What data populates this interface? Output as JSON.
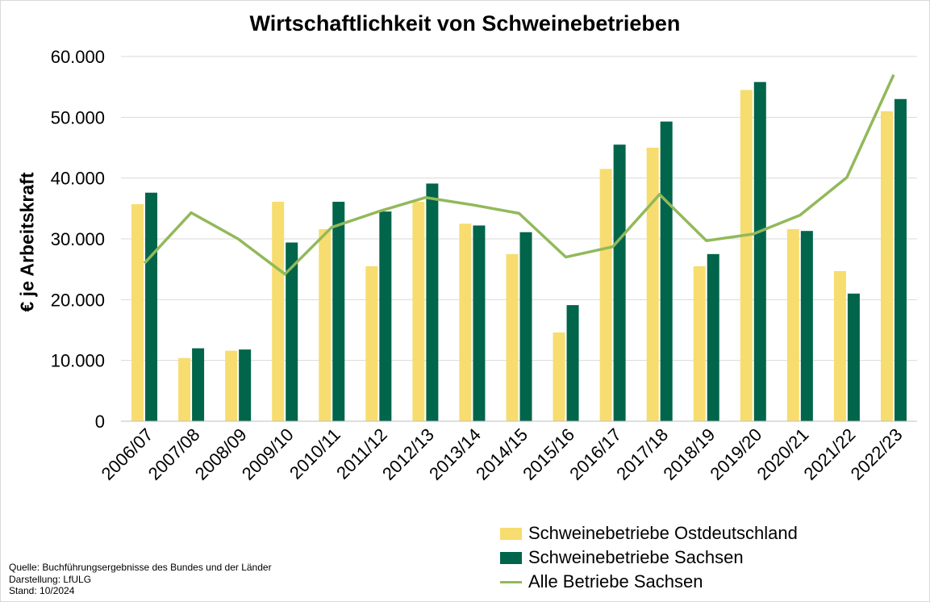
{
  "chart_data": {
    "type": "bar",
    "title": "Wirtschaftlichkeit von Schweinebetrieben",
    "xlabel": "",
    "ylabel": "€ je Arbeitskraft",
    "ylim": [
      0,
      60000
    ],
    "yticks": [
      0,
      10000,
      20000,
      30000,
      40000,
      50000,
      60000
    ],
    "ytick_labels": [
      "0",
      "10.000",
      "20.000",
      "30.000",
      "40.000",
      "50.000",
      "60.000"
    ],
    "grid": true,
    "legend_position": "bottom-right",
    "categories": [
      "2006/07",
      "2007/08",
      "2008/09",
      "2009/10",
      "2010/11",
      "2011/12",
      "2012/13",
      "2013/14",
      "2014/15",
      "2015/16",
      "2016/17",
      "2017/18",
      "2018/19",
      "2019/20",
      "2020/21",
      "2021/22",
      "2022/23"
    ],
    "series": [
      {
        "name": "Schweinebetriebe Ostdeutschland",
        "type": "bar",
        "color": "#f7dc6f",
        "values": [
          35700,
          10400,
          11600,
          36100,
          31600,
          25500,
          36100,
          32500,
          27500,
          14600,
          41500,
          45000,
          25500,
          54500,
          31600,
          24700,
          51000
        ]
      },
      {
        "name": "Schweinebetriebe Sachsen",
        "type": "bar",
        "color": "#00654a",
        "values": [
          37600,
          12000,
          11800,
          29400,
          36100,
          34500,
          39100,
          32200,
          31100,
          19100,
          45500,
          49300,
          27500,
          55800,
          31300,
          21000,
          53000
        ]
      },
      {
        "name": "Alle Betriebe Sachsen",
        "type": "line",
        "color": "#92b95a",
        "values": [
          26000,
          34300,
          30000,
          24200,
          31900,
          34500,
          36800,
          35600,
          34200,
          27000,
          28700,
          37300,
          29700,
          30800,
          33900,
          40100,
          57000
        ]
      }
    ]
  },
  "source_notes": [
    "Quelle: Buchführungsergebnisse des Bundes und der Länder",
    "Darstellung: LfULG",
    "Stand: 10/2024"
  ]
}
